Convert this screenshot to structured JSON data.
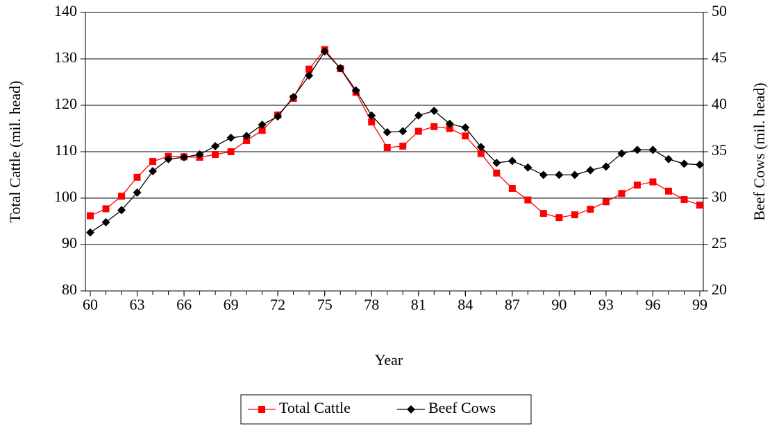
{
  "chart_data": {
    "type": "line",
    "x_label": "Year",
    "y_label": "Total Cattle (mil. head)",
    "y2_label": "Beef Cows (mil. head)",
    "x": [
      60,
      61,
      62,
      63,
      64,
      65,
      66,
      67,
      68,
      69,
      70,
      71,
      72,
      73,
      74,
      75,
      76,
      77,
      78,
      79,
      80,
      81,
      82,
      83,
      84,
      85,
      86,
      87,
      88,
      89,
      90,
      91,
      92,
      93,
      94,
      95,
      96,
      97,
      98,
      99
    ],
    "xlim": [
      60,
      99
    ],
    "xticks": [
      60,
      63,
      66,
      69,
      72,
      75,
      78,
      81,
      84,
      87,
      90,
      93,
      96,
      99
    ],
    "ylim": [
      80,
      140
    ],
    "yticks": [
      80,
      90,
      100,
      110,
      120,
      130,
      140
    ],
    "y2lim": [
      20,
      50
    ],
    "y2ticks": [
      20,
      25,
      30,
      35,
      40,
      45,
      50
    ],
    "grid": true,
    "legend": "bottom",
    "series": [
      {
        "name": "Total Cattle",
        "color": "#ff0000",
        "marker": "square",
        "values": [
          96.2,
          97.7,
          100.4,
          104.5,
          107.9,
          109.0,
          108.9,
          108.8,
          109.4,
          110.0,
          112.4,
          114.6,
          117.9,
          121.5,
          127.8,
          132.0,
          127.9,
          122.8,
          116.4,
          110.9,
          111.2,
          114.4,
          115.4,
          115.0,
          113.4,
          109.6,
          105.4,
          102.1,
          99.6,
          96.7,
          95.8,
          96.4,
          97.6,
          99.2,
          101.0,
          102.8,
          103.5,
          101.5,
          99.7,
          98.5
        ]
      },
      {
        "name": "Beef Cows",
        "color": "#000000",
        "marker": "diamond",
        "axis": "y2",
        "values": [
          26.3,
          27.4,
          28.7,
          30.6,
          32.9,
          34.2,
          34.4,
          34.7,
          35.6,
          36.5,
          36.7,
          37.9,
          38.8,
          40.9,
          43.2,
          45.8,
          44.0,
          41.6,
          38.9,
          37.1,
          37.2,
          38.9,
          39.4,
          38.0,
          37.6,
          35.5,
          33.8,
          34.0,
          33.3,
          32.5,
          32.5,
          32.5,
          33.0,
          33.4,
          34.8,
          35.2,
          35.2,
          34.2,
          33.7,
          33.6
        ]
      }
    ]
  }
}
